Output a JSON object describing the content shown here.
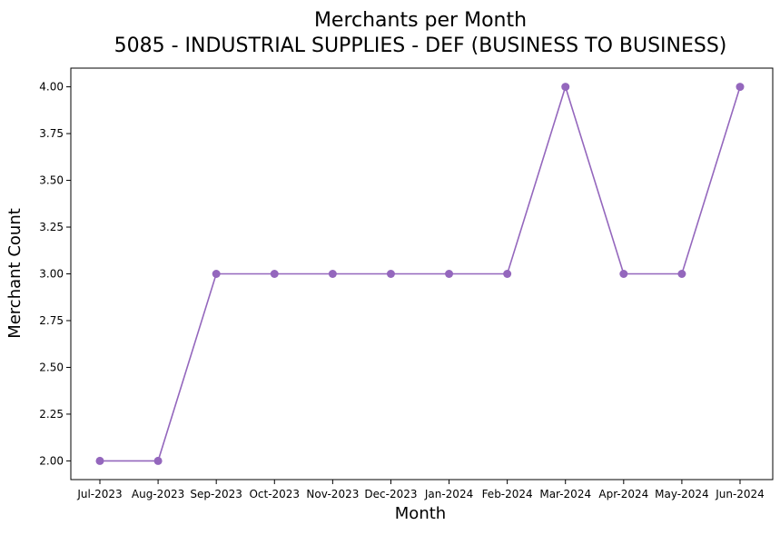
{
  "chart_data": {
    "type": "line",
    "title": "Merchants per Month",
    "subtitle": "5085 - INDUSTRIAL SUPPLIES - DEF (BUSINESS TO BUSINESS)",
    "xlabel": "Month",
    "ylabel": "Merchant Count",
    "categories": [
      "Jul-2023",
      "Aug-2023",
      "Sep-2023",
      "Oct-2023",
      "Nov-2023",
      "Dec-2023",
      "Jan-2024",
      "Feb-2024",
      "Mar-2024",
      "Apr-2024",
      "May-2024",
      "Jun-2024"
    ],
    "series": [
      {
        "values": [
          2,
          2,
          3,
          3,
          3,
          3,
          3,
          3,
          4,
          3,
          3,
          4
        ],
        "color": "#9467bd",
        "marker": "circle"
      }
    ],
    "ylim": [
      1.9,
      4.1
    ],
    "yticks": [
      "2.00",
      "2.25",
      "2.50",
      "2.75",
      "3.00",
      "3.25",
      "3.50",
      "3.75",
      "4.00"
    ],
    "grid": false,
    "legend": "none"
  }
}
